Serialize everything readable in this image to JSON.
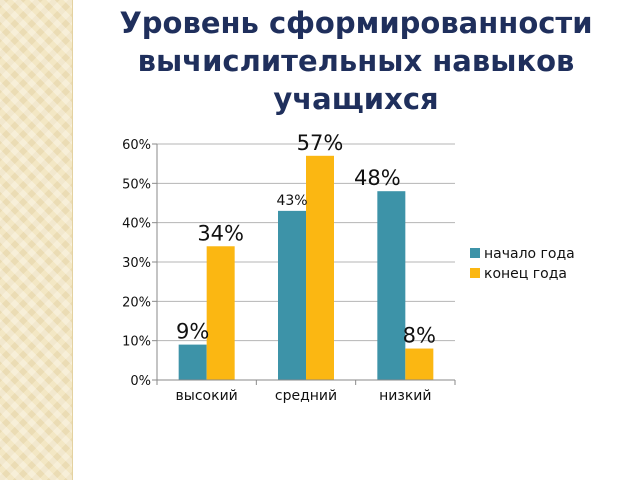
{
  "slide": {
    "title_lines": [
      "Уровень сформированности",
      "вычислительных навыков",
      "учащихся"
    ]
  },
  "chart_data": {
    "type": "bar",
    "title": "",
    "xlabel": "",
    "ylabel": "",
    "ylim": [
      0,
      60
    ],
    "y_ticks": [
      "0%",
      "10%",
      "20%",
      "30%",
      "40%",
      "50%",
      "60%"
    ],
    "categories": [
      "высокий",
      "средний",
      "низкий"
    ],
    "series": [
      {
        "name": "начало года",
        "values": [
          9,
          43,
          48
        ],
        "color": "#3d93a8",
        "labels": [
          "9%",
          "43%",
          "48%"
        ]
      },
      {
        "name": "конец года",
        "values": [
          34,
          57,
          8
        ],
        "color": "#fbb712",
        "labels": [
          "34%",
          "57%",
          "8%"
        ]
      }
    ],
    "grid": true,
    "legend_position": "right"
  }
}
